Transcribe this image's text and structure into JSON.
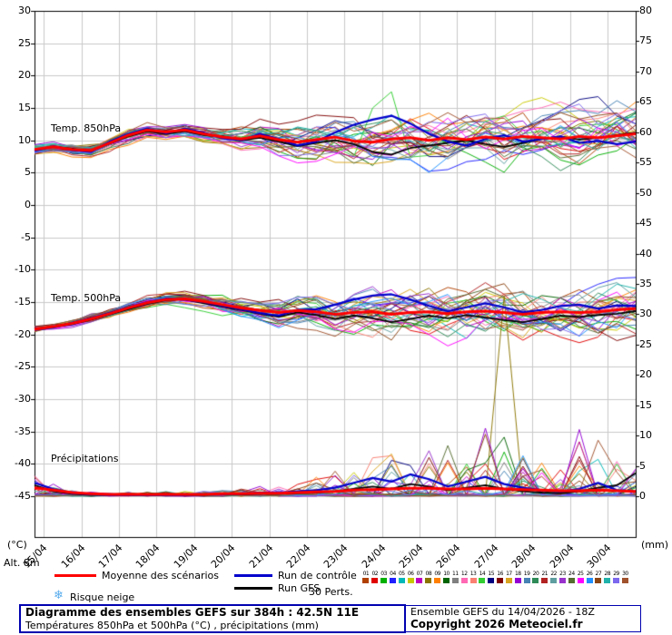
{
  "axes": {
    "left": {
      "unit": "(°C)",
      "ticks": [
        30,
        25,
        20,
        15,
        10,
        5,
        0,
        -5,
        -10,
        -15,
        -20,
        -25,
        -30,
        -35,
        -40,
        -45
      ]
    },
    "right": {
      "unit": "(mm)",
      "ticks": [
        80,
        75,
        70,
        65,
        60,
        55,
        50,
        45,
        40,
        35,
        30,
        25,
        20,
        15,
        10,
        5,
        0
      ]
    },
    "dates": [
      "15/04",
      "16/04",
      "17/04",
      "18/04",
      "19/04",
      "20/04",
      "21/04",
      "22/04",
      "23/04",
      "24/04",
      "25/04",
      "26/04",
      "27/04",
      "28/04",
      "29/04",
      "30/04"
    ],
    "alt_label": "Alt. 8m"
  },
  "panels": {
    "t850": "Temp. 850hPa",
    "t500": "Temp. 500hPa",
    "precip": "Précipitations"
  },
  "legend": {
    "mean": {
      "label": "Moyenne des scénarios",
      "color": "#ff0000"
    },
    "control": {
      "label": "Run de contrôle",
      "color": "#0000cc"
    },
    "gfs": {
      "label": "Run GFS",
      "color": "#000000"
    },
    "perts_label": "30 Perts.",
    "snow": {
      "label": "Risque neige",
      "icon": "❄",
      "color": "#58acec"
    },
    "members": [
      {
        "num": "01",
        "color": "#b04000"
      },
      {
        "num": "02",
        "color": "#e00000"
      },
      {
        "num": "03",
        "color": "#00b000"
      },
      {
        "num": "04",
        "color": "#2020ff"
      },
      {
        "num": "05",
        "color": "#00b8b8"
      },
      {
        "num": "06",
        "color": "#c8c800"
      },
      {
        "num": "07",
        "color": "#c000c0"
      },
      {
        "num": "08",
        "color": "#8b7500"
      },
      {
        "num": "09",
        "color": "#ff8000"
      },
      {
        "num": "10",
        "color": "#006400"
      },
      {
        "num": "11",
        "color": "#808080"
      },
      {
        "num": "12",
        "color": "#ff69b4"
      },
      {
        "num": "13",
        "color": "#fa8072"
      },
      {
        "num": "14",
        "color": "#32cd32"
      },
      {
        "num": "15",
        "color": "#000080"
      },
      {
        "num": "16",
        "color": "#800000"
      },
      {
        "num": "17",
        "color": "#daa520"
      },
      {
        "num": "18",
        "color": "#9400d3"
      },
      {
        "num": "19",
        "color": "#4682b4"
      },
      {
        "num": "20",
        "color": "#2e8b57"
      },
      {
        "num": "21",
        "color": "#b22222"
      },
      {
        "num": "22",
        "color": "#5f9ea0"
      },
      {
        "num": "23",
        "color": "#9932cc"
      },
      {
        "num": "24",
        "color": "#556b2f"
      },
      {
        "num": "25",
        "color": "#ff00ff"
      },
      {
        "num": "26",
        "color": "#1e90ff"
      },
      {
        "num": "27",
        "color": "#8b4513"
      },
      {
        "num": "28",
        "color": "#20b2aa"
      },
      {
        "num": "29",
        "color": "#7b68ee"
      },
      {
        "num": "30",
        "color": "#a0522d"
      }
    ]
  },
  "footer": {
    "title": "Diagramme des ensembles GEFS sur 384h : 42.5N 11E",
    "subtitle": "Températures 850hPa et 500hPa (°C) , précipitations (mm)",
    "run_info": "Ensemble GEFS du 14/04/2026 - 18Z",
    "copyright": "Copyright 2026 Meteociel.fr"
  },
  "chart_data": [
    {
      "type": "line",
      "name": "Temp. 850hPa",
      "unit": "°C",
      "time_step_hours": 12,
      "x_start_hour": 0,
      "x_end_hour": 384,
      "ylim": [
        -45,
        30
      ],
      "mean": [
        8.6,
        9.0,
        8.6,
        8.4,
        9.6,
        10.8,
        11.6,
        11.3,
        11.6,
        11.0,
        10.5,
        10.2,
        10.7,
        10.1,
        9.7,
        10.1,
        10.5,
        9.9,
        9.7,
        10.2,
        10.4,
        10.0,
        10.4,
        10.1,
        10.5,
        10.2,
        10.6,
        10.4,
        10.2,
        10.6,
        10.4,
        10.7,
        11.0
      ],
      "control": [
        8.4,
        9.1,
        8.5,
        8.2,
        9.8,
        11.0,
        11.8,
        11.1,
        11.8,
        11.2,
        10.3,
        10.0,
        11.0,
        10.2,
        9.2,
        9.8,
        11.2,
        12.4,
        13.2,
        13.8,
        12.6,
        11.0,
        9.8,
        9.2,
        10.2,
        10.8,
        9.8,
        10.2,
        10.6,
        9.6,
        9.9,
        9.4,
        9.8
      ],
      "gfs": [
        8.5,
        9.0,
        8.7,
        8.3,
        9.5,
        10.6,
        11.4,
        11.0,
        11.4,
        10.8,
        10.6,
        10.0,
        10.4,
        9.8,
        9.1,
        9.6,
        10.0,
        9.4,
        8.2,
        7.8,
        8.8,
        9.2,
        9.6,
        10.0,
        9.4,
        9.0,
        9.6,
        10.2,
        10.6,
        10.1,
        10.4,
        10.8,
        11.2
      ],
      "spread": [
        0.8,
        0.8,
        0.9,
        0.9,
        0.9,
        1.0,
        1.0,
        1.0,
        1.1,
        1.2,
        1.4,
        1.7,
        2.0,
        2.4,
        2.8,
        3.1,
        3.4,
        3.6,
        3.8,
        4.0,
        4.1,
        4.2,
        4.3,
        4.4,
        4.4,
        4.5,
        4.5,
        4.5,
        4.6,
        4.7,
        4.8,
        4.9,
        5.0
      ],
      "notable_peaks": [
        {
          "member": 14,
          "index": 18,
          "value": 15.0
        },
        {
          "member": 14,
          "index": 19,
          "value": 17.5
        }
      ]
    },
    {
      "type": "line",
      "name": "Temp. 500hPa",
      "unit": "°C",
      "time_step_hours": 12,
      "x_start_hour": 0,
      "x_end_hour": 384,
      "ylim": [
        -45,
        30
      ],
      "mean": [
        -19.2,
        -18.8,
        -18.3,
        -17.6,
        -16.8,
        -15.9,
        -15.1,
        -14.6,
        -14.5,
        -14.9,
        -15.4,
        -15.9,
        -16.3,
        -16.6,
        -16.3,
        -16.5,
        -16.9,
        -16.6,
        -16.5,
        -16.9,
        -16.6,
        -16.5,
        -16.8,
        -16.5,
        -16.4,
        -16.6,
        -16.9,
        -16.6,
        -16.5,
        -16.6,
        -16.5,
        -16.2,
        -16.0
      ],
      "control": [
        -19.3,
        -18.9,
        -18.2,
        -17.5,
        -16.7,
        -15.8,
        -15.0,
        -14.5,
        -14.6,
        -15.0,
        -15.6,
        -16.1,
        -16.7,
        -17.1,
        -16.2,
        -16.1,
        -15.4,
        -14.6,
        -14.0,
        -13.8,
        -14.6,
        -15.6,
        -16.4,
        -15.8,
        -15.2,
        -15.8,
        -16.6,
        -16.2,
        -15.6,
        -15.4,
        -16.0,
        -15.5,
        -15.6
      ],
      "gfs": [
        -19.1,
        -18.8,
        -18.4,
        -17.7,
        -16.9,
        -16.1,
        -15.3,
        -14.7,
        -14.6,
        -15.2,
        -15.7,
        -16.2,
        -16.8,
        -17.3,
        -16.6,
        -17.0,
        -17.6,
        -17.1,
        -17.5,
        -18.1,
        -17.6,
        -17.1,
        -17.5,
        -17.0,
        -17.4,
        -17.8,
        -18.1,
        -17.6,
        -17.1,
        -17.3,
        -17.0,
        -16.8,
        -16.4
      ],
      "spread": [
        0.6,
        0.6,
        0.7,
        0.7,
        0.8,
        0.8,
        0.9,
        0.9,
        1.0,
        1.1,
        1.3,
        1.6,
        1.9,
        2.2,
        2.6,
        2.9,
        3.2,
        3.5,
        3.7,
        3.9,
        4.1,
        4.2,
        4.3,
        4.4,
        4.4,
        4.5,
        4.5,
        4.5,
        4.5,
        4.5,
        4.5,
        4.5,
        4.5
      ]
    },
    {
      "type": "line",
      "name": "Précipitations",
      "unit": "mm",
      "time_step_hours": 12,
      "x_start_hour": 0,
      "x_end_hour": 384,
      "ylim": [
        0,
        80
      ],
      "mean": [
        1.4,
        1.0,
        0.6,
        0.4,
        0.3,
        0.3,
        0.3,
        0.3,
        0.3,
        0.3,
        0.4,
        0.4,
        0.5,
        0.5,
        0.6,
        0.7,
        0.8,
        1.0,
        1.1,
        1.2,
        1.3,
        1.3,
        1.2,
        1.2,
        1.3,
        1.2,
        1.1,
        1.0,
        0.9,
        0.9,
        1.0,
        0.9,
        0.8
      ],
      "control": [
        2.2,
        1.2,
        0.5,
        0.3,
        0.2,
        0.2,
        0.2,
        0.2,
        0.2,
        0.3,
        0.3,
        0.4,
        0.6,
        0.5,
        0.8,
        1.0,
        1.4,
        2.2,
        3.0,
        2.4,
        3.6,
        2.8,
        1.6,
        2.4,
        3.2,
        2.0,
        1.4,
        1.0,
        0.8,
        1.2,
        2.2,
        1.0,
        0.8
      ],
      "gfs": [
        1.8,
        0.8,
        0.4,
        0.2,
        0.2,
        0.2,
        0.2,
        0.2,
        0.2,
        0.2,
        0.3,
        0.3,
        0.4,
        0.4,
        0.5,
        0.6,
        0.8,
        1.2,
        1.6,
        1.2,
        2.0,
        1.6,
        1.0,
        1.4,
        1.8,
        1.2,
        0.8,
        0.6,
        0.5,
        0.8,
        1.4,
        1.8,
        3.8
      ],
      "spike_envelope": [
        3.2,
        2.4,
        1.2,
        0.6,
        0.5,
        0.5,
        0.5,
        0.5,
        0.5,
        0.6,
        0.8,
        1.0,
        1.4,
        1.6,
        2.2,
        3.0,
        4.0,
        6.0,
        8.0,
        7.0,
        9.0,
        12.0,
        9.0,
        10.0,
        14.0,
        11.0,
        8.0,
        6.0,
        5.0,
        9.0,
        10.0,
        6.0,
        5.0
      ],
      "notable_spikes": [
        {
          "member": 8,
          "index": 25,
          "value": 33
        },
        {
          "member": 18,
          "index": 29,
          "value": 11
        }
      ]
    }
  ]
}
